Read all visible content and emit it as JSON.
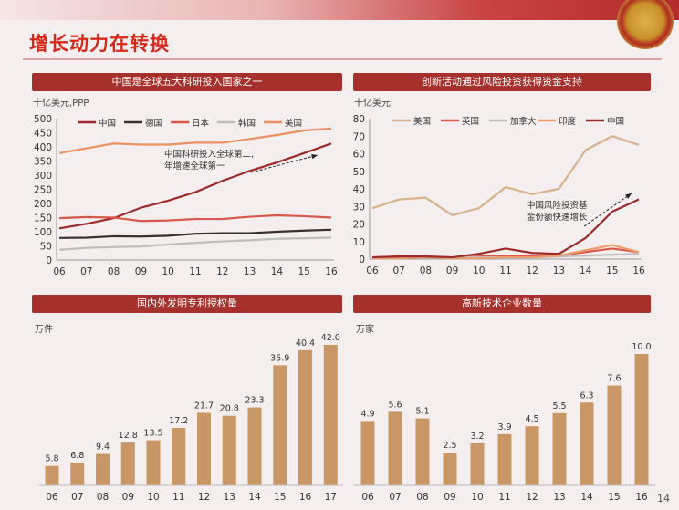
{
  "slide": {
    "title": "增长动力在转换",
    "page_number": "14"
  },
  "chart_data": [
    {
      "type": "line",
      "title": "中国是全球五大科研投入国家之一",
      "ylabel": "十亿美元,PPP",
      "ylim": [
        0,
        500
      ],
      "yticks": [
        0,
        50,
        100,
        150,
        200,
        250,
        300,
        350,
        400,
        450,
        500
      ],
      "categories": [
        "06",
        "07",
        "08",
        "09",
        "10",
        "11",
        "12",
        "13",
        "14",
        "15",
        "16"
      ],
      "legend_position": "top",
      "annotation": [
        "中国科研投入全球第二,",
        "年增速全球第一"
      ],
      "series": [
        {
          "name": "中国",
          "color": "#9c2b2b",
          "values": [
            112,
            128,
            148,
            185,
            210,
            240,
            280,
            315,
            345,
            378,
            412
          ]
        },
        {
          "name": "德国",
          "color": "#3a3030",
          "values": [
            78,
            79,
            84,
            83,
            86,
            93,
            95,
            95,
            100,
            104,
            107
          ]
        },
        {
          "name": "日本",
          "color": "#d9574c",
          "values": [
            148,
            152,
            150,
            138,
            140,
            145,
            145,
            153,
            158,
            155,
            150
          ]
        },
        {
          "name": "韩国",
          "color": "#bdbdbd",
          "values": [
            36,
            43,
            46,
            48,
            55,
            61,
            66,
            70,
            75,
            77,
            79
          ]
        },
        {
          "name": "美国",
          "color": "#ea9262",
          "values": [
            378,
            395,
            412,
            408,
            408,
            415,
            415,
            428,
            442,
            458,
            465
          ]
        }
      ]
    },
    {
      "type": "line",
      "title": "创新活动通过风险投资获得资金支持",
      "ylabel": "十亿美元",
      "ylim": [
        0,
        80
      ],
      "yticks": [
        0,
        10,
        20,
        30,
        40,
        50,
        60,
        70,
        80
      ],
      "categories": [
        "06",
        "07",
        "08",
        "09",
        "10",
        "11",
        "12",
        "13",
        "14",
        "15",
        "16"
      ],
      "legend_position": "top",
      "annotation": [
        "中国风险投资基",
        "金份额快速增长"
      ],
      "series": [
        {
          "name": "美国",
          "color": "#d8b08c",
          "values": [
            29,
            34,
            35,
            25,
            29,
            41,
            37,
            40,
            62,
            70,
            65
          ]
        },
        {
          "name": "英国",
          "color": "#d9574c",
          "values": [
            1,
            1.5,
            1.5,
            1,
            1.5,
            2,
            2,
            2,
            4,
            6,
            4
          ]
        },
        {
          "name": "加拿大",
          "color": "#bdbdbd",
          "values": [
            1,
            1,
            1,
            1,
            1,
            1,
            1,
            1.5,
            2,
            2.5,
            3
          ]
        },
        {
          "name": "印度",
          "color": "#ee9a6a",
          "values": [
            0.5,
            0.5,
            1,
            0.5,
            0.5,
            1,
            1,
            2,
            5,
            8,
            4
          ]
        },
        {
          "name": "中国",
          "color": "#9c2b2b",
          "values": [
            1,
            1.5,
            1.5,
            1,
            3,
            6,
            3.5,
            3,
            12,
            27,
            34
          ]
        }
      ]
    },
    {
      "type": "bar",
      "title": "国内外发明专利授权量",
      "ylabel": "万件",
      "color": "#c99766",
      "categories": [
        "06",
        "07",
        "08",
        "09",
        "10",
        "11",
        "12",
        "13",
        "14",
        "15",
        "16",
        "17"
      ],
      "values": [
        5.8,
        6.8,
        9.4,
        12.8,
        13.5,
        17.2,
        21.7,
        20.8,
        23.3,
        35.9,
        40.4,
        42.0
      ]
    },
    {
      "type": "bar",
      "title": "高新技术企业数量",
      "ylabel": "万家",
      "color": "#c99766",
      "categories": [
        "06",
        "07",
        "08",
        "09",
        "10",
        "11",
        "12",
        "13",
        "14",
        "15",
        "16"
      ],
      "values": [
        4.9,
        5.6,
        5.1,
        2.5,
        3.2,
        3.9,
        4.5,
        5.5,
        6.3,
        7.6,
        10.0
      ]
    }
  ]
}
